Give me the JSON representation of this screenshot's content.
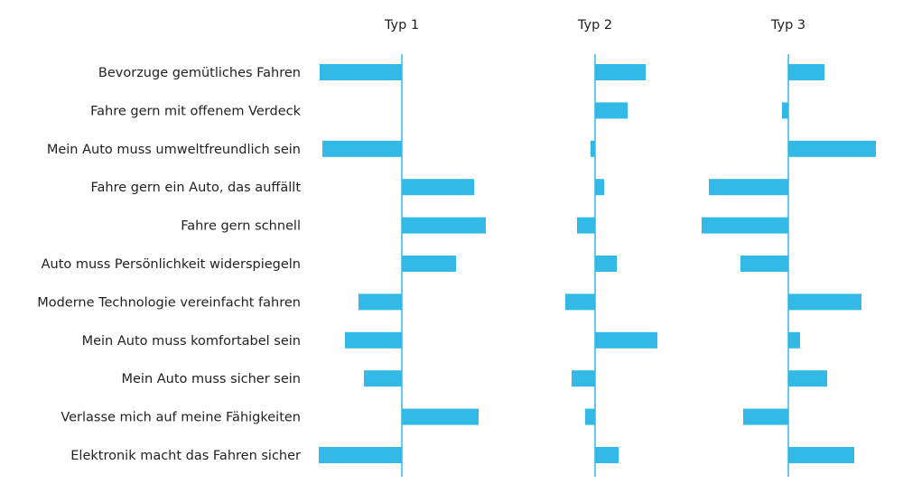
{
  "chart_data": {
    "type": "bar",
    "orientation": "horizontal",
    "categories": [
      "Bevorzuge gemütliches Fahren",
      "Fahre gern mit offenem Verdeck",
      "Mein Auto muss umweltfreundlich sein",
      "Fahre gern ein Auto, das auffällt",
      "Fahre gern schnell",
      "Auto muss Persönlichkeit widerspiegeln",
      "Moderne Technologie vereinfacht fahren",
      "Mein Auto muss komfortabel sein",
      "Mein Auto muss sicher sein",
      "Verlasse mich auf meine Fähigkeiten",
      "Elektronik macht das Fahren sicher"
    ],
    "series": [
      {
        "name": "Typ 1",
        "values": [
          -0.91,
          0,
          -0.88,
          0.8,
          0.93,
          0.6,
          -0.48,
          -0.63,
          -0.42,
          0.85,
          -0.92
        ]
      },
      {
        "name": "Typ 2",
        "values": [
          0.56,
          0.36,
          -0.05,
          0.1,
          -0.2,
          0.24,
          -0.33,
          0.69,
          -0.26,
          -0.11,
          0.26
        ]
      },
      {
        "name": "Typ 3",
        "values": [
          0.4,
          -0.07,
          0.97,
          -0.88,
          -0.96,
          -0.53,
          0.81,
          0.13,
          0.43,
          -0.5,
          0.73
        ]
      }
    ],
    "xlim": [
      -1,
      1
    ],
    "grid": false,
    "legend": "none",
    "bar_color": "#33b9e6",
    "axis_color": "#33b9e6"
  }
}
